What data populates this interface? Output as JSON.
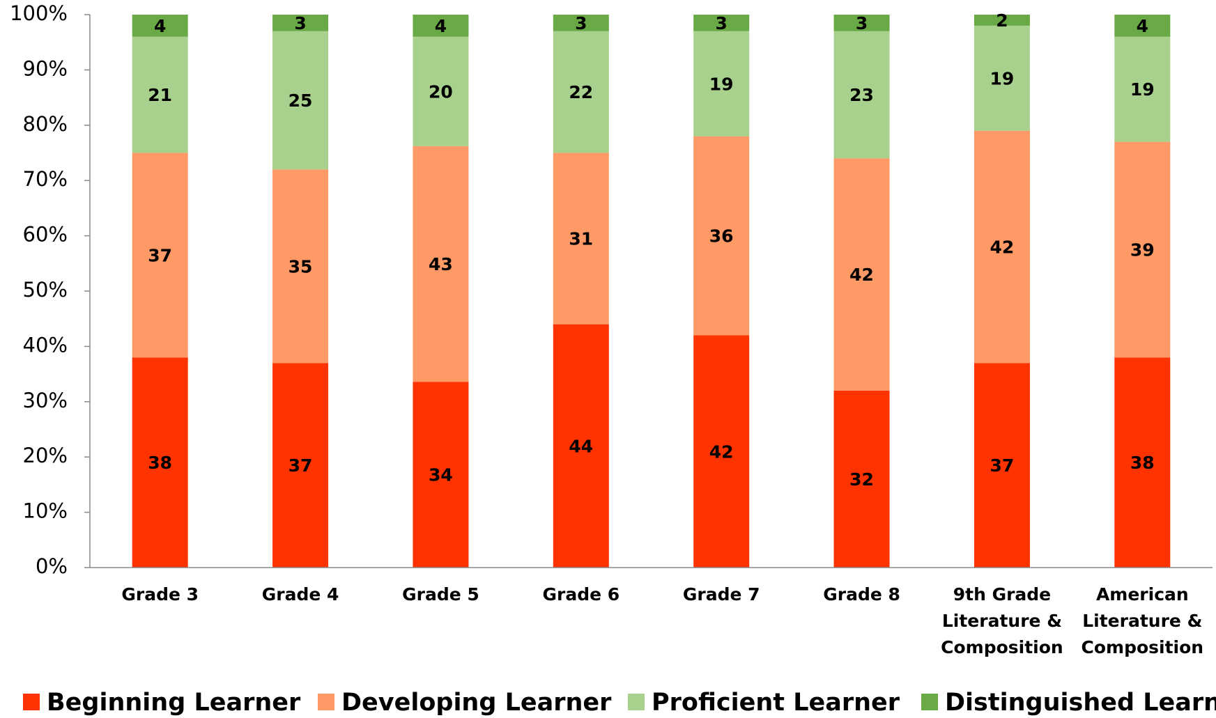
{
  "chart_data": {
    "type": "stacked_bar",
    "categories": [
      "Grade 3",
      "Grade 4",
      "Grade 5",
      "Grade 6",
      "Grade 7",
      "Grade 8",
      "9th Grade Literature & Composition",
      "American Literature & Composition"
    ],
    "series": [
      {
        "name": "Beginning Learner",
        "color": "#ff3300",
        "values": [
          38,
          37,
          33.6,
          44,
          42,
          32,
          37,
          38
        ],
        "value_labels": [
          "38",
          "37",
          "34",
          "44",
          "42",
          "32",
          "37",
          "38"
        ]
      },
      {
        "name": "Developing Learner",
        "color": "#ff9966",
        "values": [
          37,
          35,
          42.6,
          31,
          36,
          42,
          42,
          39
        ],
        "value_labels": [
          "37",
          "35",
          "43",
          "31",
          "36",
          "42",
          "42",
          "39"
        ]
      },
      {
        "name": "Proficient Learner",
        "color": "#a9d18e",
        "values": [
          21,
          25,
          19.8,
          22,
          19,
          23,
          19,
          19
        ],
        "value_labels": [
          "21",
          "25",
          "20",
          "22",
          "19",
          "23",
          "19",
          "19"
        ]
      },
      {
        "name": "Distinguished Learner",
        "color": "#6aaa46",
        "values": [
          4,
          3,
          4,
          3,
          3,
          3,
          2,
          4
        ],
        "value_labels": [
          "4",
          "3",
          "4",
          "3",
          "3",
          "3",
          "2",
          "4"
        ]
      }
    ],
    "ylim": [
      0,
      100
    ],
    "yticks": [
      {
        "value": 0,
        "label": "0%"
      },
      {
        "value": 10,
        "label": "10%"
      },
      {
        "value": 20,
        "label": "20%"
      },
      {
        "value": 30,
        "label": "30%"
      },
      {
        "value": 40,
        "label": "40%"
      },
      {
        "value": 50,
        "label": "50%"
      },
      {
        "value": 60,
        "label": "60%"
      },
      {
        "value": 70,
        "label": "70%"
      },
      {
        "value": 80,
        "label": "80%"
      },
      {
        "value": 90,
        "label": "90%"
      },
      {
        "value": 100,
        "label": "100%"
      }
    ],
    "grid": false,
    "legend": "bottom"
  }
}
